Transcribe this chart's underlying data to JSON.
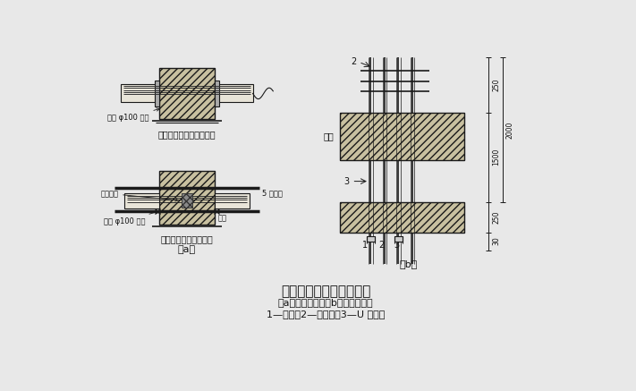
{
  "bg_color": "#e8e8e8",
  "title": "电缆穿墙、穿楼板做法图",
  "subtitle1": "（a）电缆穿墙；（b）电缆穿楼板",
  "subtitle2": "1—电缆；2—保护管；3—U 型卡子",
  "label_a": "（a）",
  "label_b": "（b）",
  "label_top_a1": "内径 φ100 钢管",
  "label_top_a2": "电缆穿墙做法（不防水）",
  "label_bot_a1": "泡浸黄麻",
  "label_bot_a2": "5 厚钢板",
  "label_bot_a3": "内径 φ100 钢管",
  "label_bot_a4": "电焊",
  "label_bot_a5": "电缆穿墙做法（防水）",
  "label_b1": "楼板",
  "dim_250": "250",
  "dim_1500": "1500",
  "dim_2000": "2000",
  "dim_250b": "250",
  "dim_30": "30",
  "line_color": "#1a1a1a",
  "text_color": "#111111",
  "wall_bg": "#d0c8b0",
  "slab_bg": "#d0c8b0"
}
